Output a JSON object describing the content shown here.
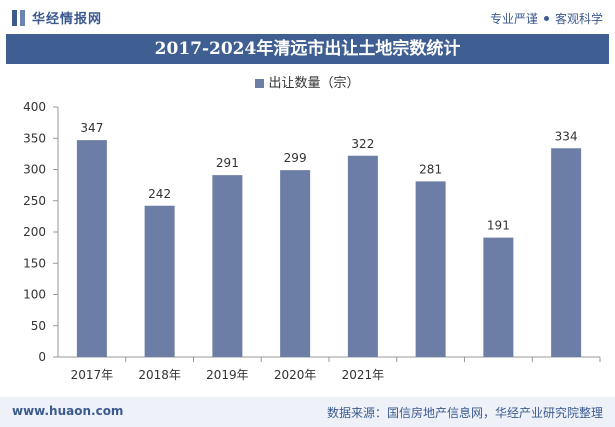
{
  "header": {
    "brand": "华经情报网",
    "tagline_left": "专业严谨",
    "tagline_right": "客观科学"
  },
  "chart_data": {
    "type": "bar",
    "title": "2017-2024年清远市出让土地宗数统计",
    "categories": [
      "2017年",
      "2018年",
      "2019年",
      "2020年",
      "2021年",
      "",
      "",
      ""
    ],
    "series": [
      {
        "name": "出让数量（宗）",
        "values": [
          347,
          242,
          291,
          299,
          322,
          281,
          191,
          334
        ]
      }
    ],
    "ylim": [
      0,
      400
    ],
    "yticks": [
      0,
      50,
      100,
      150,
      200,
      250,
      300,
      350,
      400
    ],
    "grid": false,
    "legend": "top-center",
    "bar_color": "#6d7ea6"
  },
  "footer": {
    "website": "www.huaon.com",
    "source": "数据来源：国信房地产信息网，华经产业研究院整理"
  }
}
